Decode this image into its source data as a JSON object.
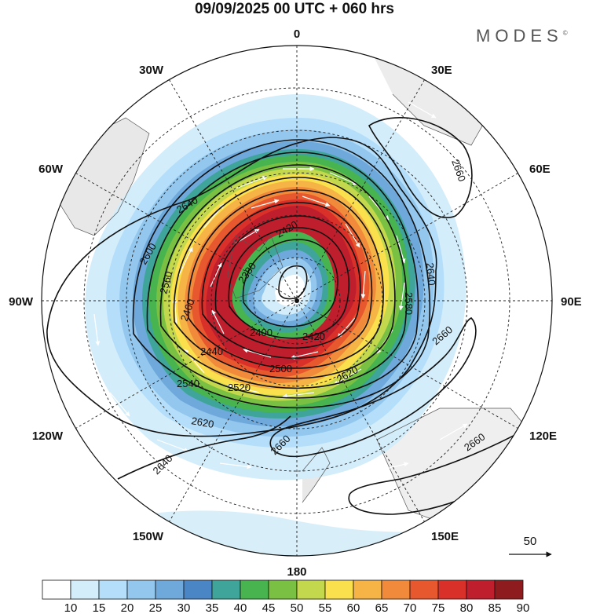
{
  "title": "09/09/2025  00 UTC  + 060 hrs",
  "brand": "MODES",
  "brand_mark": "©",
  "longitude_labels": {
    "top": "0",
    "bottom": "180",
    "left": "90W",
    "right": "90E",
    "nw30": "30W",
    "nw60": "60W",
    "ne30": "30E",
    "ne60": "60E",
    "sw120": "120W",
    "sw150": "150W",
    "se120": "120E",
    "se150": "150E"
  },
  "contour_labels": [
    "2380",
    "2400",
    "2420",
    "2420",
    "2440",
    "2460",
    "2500",
    "2520",
    "2540",
    "2560",
    "2580",
    "2600",
    "2620",
    "2620",
    "2640",
    "2640",
    "2640",
    "2660",
    "2660",
    "2660",
    "2660"
  ],
  "vector_reference": "50",
  "colorbar": {
    "labels": [
      "10",
      "15",
      "20",
      "25",
      "30",
      "35",
      "40",
      "45",
      "50",
      "55",
      "60",
      "65",
      "70",
      "75",
      "80",
      "85",
      "90"
    ],
    "colors": [
      "#ffffff",
      "#d4edfa",
      "#b4defa",
      "#93c7ee",
      "#6fa9dc",
      "#4a86c5",
      "#3fa59a",
      "#48b44f",
      "#7ac143",
      "#c3d84c",
      "#f9e04c",
      "#f5b445",
      "#f18a3a",
      "#e8582e",
      "#d9302a",
      "#bf1e2d",
      "#8e1c1f"
    ]
  }
}
